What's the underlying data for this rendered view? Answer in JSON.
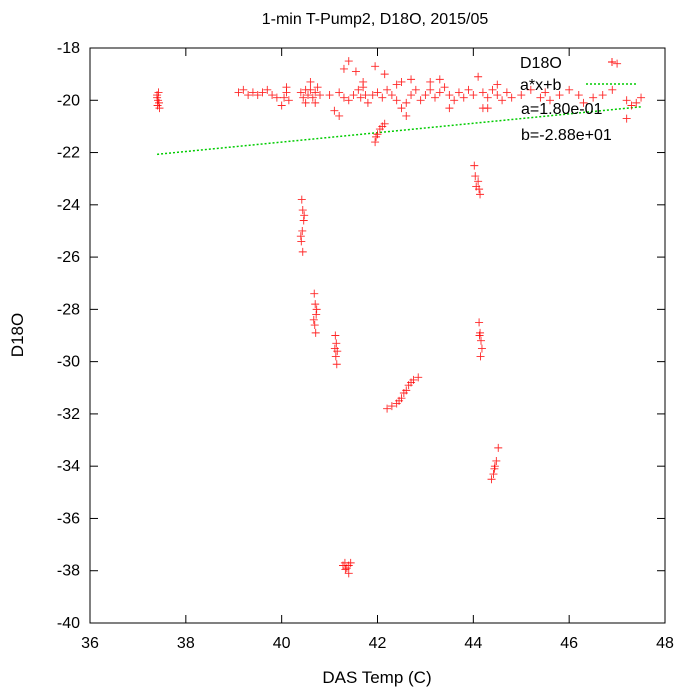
{
  "chart_data": {
    "type": "scatter",
    "title": "1-min T-Pump2, D18O, 2015/05",
    "xlabel": "DAS Temp (C)",
    "ylabel": "D18O",
    "xlim": [
      36,
      48
    ],
    "ylim": [
      -40,
      -18
    ],
    "xticks": [
      36,
      38,
      40,
      42,
      44,
      46,
      48
    ],
    "yticks": [
      -40,
      -38,
      -36,
      -34,
      -32,
      -30,
      -28,
      -26,
      -24,
      -22,
      -20,
      -18
    ],
    "grid": false,
    "legend_position": "top-right",
    "series": [
      {
        "name": "D18O",
        "style": "plus-markers",
        "color": "#ff0000",
        "points": [
          [
            37.4,
            -19.8
          ],
          [
            37.42,
            -20.0
          ],
          [
            37.44,
            -20.1
          ],
          [
            37.4,
            -19.9
          ],
          [
            37.45,
            -20.3
          ],
          [
            37.43,
            -19.7
          ],
          [
            37.41,
            -20.2
          ],
          [
            39.1,
            -19.7
          ],
          [
            39.2,
            -19.6
          ],
          [
            39.3,
            -19.8
          ],
          [
            39.4,
            -19.7
          ],
          [
            39.5,
            -19.8
          ],
          [
            39.6,
            -19.7
          ],
          [
            39.7,
            -19.6
          ],
          [
            39.8,
            -19.8
          ],
          [
            39.9,
            -19.9
          ],
          [
            40.0,
            -20.2
          ],
          [
            40.05,
            -19.9
          ],
          [
            40.1,
            -19.7
          ],
          [
            40.15,
            -20.0
          ],
          [
            40.1,
            -19.5
          ],
          [
            40.4,
            -19.7
          ],
          [
            40.45,
            -19.9
          ],
          [
            40.5,
            -20.1
          ],
          [
            40.55,
            -19.8
          ],
          [
            40.6,
            -19.6
          ],
          [
            40.65,
            -19.9
          ],
          [
            40.7,
            -19.7
          ],
          [
            40.75,
            -19.5
          ],
          [
            40.8,
            -19.8
          ],
          [
            40.7,
            -20.1
          ],
          [
            40.6,
            -19.3
          ],
          [
            40.5,
            -19.6
          ],
          [
            41.2,
            -19.7
          ],
          [
            41.3,
            -19.9
          ],
          [
            41.4,
            -20.0
          ],
          [
            41.5,
            -19.8
          ],
          [
            41.6,
            -19.6
          ],
          [
            41.65,
            -19.9
          ],
          [
            41.7,
            -19.5
          ],
          [
            41.75,
            -19.8
          ],
          [
            41.8,
            -20.1
          ],
          [
            41.7,
            -19.3
          ],
          [
            41.55,
            -18.9
          ],
          [
            41.9,
            -19.8
          ],
          [
            41.3,
            -18.8
          ],
          [
            41.4,
            -18.5
          ],
          [
            41.95,
            -18.7
          ],
          [
            42.15,
            -19.0
          ],
          [
            41.0,
            -19.8
          ],
          [
            41.1,
            -20.4
          ],
          [
            41.2,
            -20.6
          ],
          [
            42.0,
            -19.7
          ],
          [
            42.1,
            -19.9
          ],
          [
            42.2,
            -19.6
          ],
          [
            42.3,
            -19.8
          ],
          [
            42.4,
            -20.0
          ],
          [
            42.5,
            -20.3
          ],
          [
            42.6,
            -20.1
          ],
          [
            42.7,
            -19.8
          ],
          [
            42.8,
            -19.6
          ],
          [
            42.9,
            -20.0
          ],
          [
            42.6,
            -20.6
          ],
          [
            42.4,
            -19.4
          ],
          [
            42.5,
            -19.3
          ],
          [
            42.7,
            -19.2
          ],
          [
            43.0,
            -19.8
          ],
          [
            43.1,
            -19.6
          ],
          [
            43.2,
            -19.9
          ],
          [
            43.3,
            -19.7
          ],
          [
            43.4,
            -19.5
          ],
          [
            43.5,
            -19.8
          ],
          [
            43.6,
            -20.0
          ],
          [
            43.7,
            -19.7
          ],
          [
            43.8,
            -19.9
          ],
          [
            43.9,
            -19.6
          ],
          [
            43.1,
            -19.3
          ],
          [
            43.3,
            -19.2
          ],
          [
            43.5,
            -20.3
          ],
          [
            44.0,
            -19.8
          ],
          [
            44.1,
            -19.1
          ],
          [
            44.2,
            -19.7
          ],
          [
            44.3,
            -19.9
          ],
          [
            44.4,
            -19.6
          ],
          [
            44.5,
            -19.8
          ],
          [
            44.6,
            -20.0
          ],
          [
            44.7,
            -19.7
          ],
          [
            44.8,
            -19.9
          ],
          [
            44.3,
            -20.3
          ],
          [
            44.5,
            -19.4
          ],
          [
            44.2,
            -20.3
          ],
          [
            45.0,
            -19.8
          ],
          [
            45.2,
            -19.6
          ],
          [
            45.4,
            -19.9
          ],
          [
            45.5,
            -19.7
          ],
          [
            45.6,
            -20.0
          ],
          [
            45.8,
            -19.8
          ],
          [
            46.0,
            -19.6
          ],
          [
            46.2,
            -19.8
          ],
          [
            46.3,
            -20.1
          ],
          [
            46.5,
            -19.9
          ],
          [
            46.7,
            -19.8
          ],
          [
            46.9,
            -19.6
          ],
          [
            47.0,
            -18.6
          ],
          [
            47.2,
            -20.0
          ],
          [
            47.3,
            -20.2
          ],
          [
            47.4,
            -20.1
          ],
          [
            47.5,
            -19.9
          ],
          [
            47.2,
            -20.7
          ],
          [
            41.95,
            -21.6
          ],
          [
            42.0,
            -21.3
          ],
          [
            42.05,
            -21.1
          ],
          [
            42.1,
            -21.0
          ],
          [
            42.15,
            -20.9
          ],
          [
            41.97,
            -21.4
          ],
          [
            40.42,
            -23.8
          ],
          [
            40.44,
            -24.2
          ],
          [
            40.46,
            -24.6
          ],
          [
            40.43,
            -25.0
          ],
          [
            40.41,
            -25.4
          ],
          [
            40.44,
            -25.8
          ],
          [
            40.47,
            -24.4
          ],
          [
            40.4,
            -25.2
          ],
          [
            40.68,
            -27.4
          ],
          [
            40.7,
            -27.8
          ],
          [
            40.72,
            -28.2
          ],
          [
            40.69,
            -28.6
          ],
          [
            40.71,
            -28.9
          ],
          [
            40.73,
            -28.0
          ],
          [
            40.67,
            -28.4
          ],
          [
            41.12,
            -29.0
          ],
          [
            41.14,
            -29.3
          ],
          [
            41.16,
            -29.6
          ],
          [
            41.13,
            -29.8
          ],
          [
            41.15,
            -30.1
          ],
          [
            41.11,
            -29.5
          ],
          [
            42.2,
            -31.8
          ],
          [
            42.3,
            -31.7
          ],
          [
            42.4,
            -31.6
          ],
          [
            42.5,
            -31.4
          ],
          [
            42.55,
            -31.2
          ],
          [
            42.6,
            -31.1
          ],
          [
            42.65,
            -30.9
          ],
          [
            42.7,
            -30.8
          ],
          [
            42.75,
            -30.7
          ],
          [
            42.85,
            -30.6
          ],
          [
            42.45,
            -31.5
          ],
          [
            41.28,
            -37.8
          ],
          [
            41.32,
            -37.7
          ],
          [
            41.36,
            -37.9
          ],
          [
            41.4,
            -37.8
          ],
          [
            41.44,
            -37.7
          ],
          [
            41.4,
            -38.1
          ],
          [
            41.33,
            -37.95
          ],
          [
            44.02,
            -22.5
          ],
          [
            44.04,
            -22.9
          ],
          [
            44.06,
            -23.3
          ],
          [
            44.12,
            -23.4
          ],
          [
            44.14,
            -23.6
          ],
          [
            44.1,
            -23.1
          ],
          [
            44.12,
            -28.5
          ],
          [
            44.14,
            -28.9
          ],
          [
            44.16,
            -29.2
          ],
          [
            44.18,
            -29.5
          ],
          [
            44.15,
            -29.8
          ],
          [
            44.13,
            -29.0
          ],
          [
            44.38,
            -34.5
          ],
          [
            44.42,
            -34.3
          ],
          [
            44.45,
            -34.0
          ],
          [
            44.48,
            -33.8
          ],
          [
            44.52,
            -33.3
          ],
          [
            44.44,
            -34.1
          ]
        ]
      },
      {
        "name": "a*x+b",
        "style": "dotted-line",
        "color": "#00cc00",
        "a": 0.18,
        "b": -28.8,
        "x_range": [
          37.4,
          47.5
        ]
      }
    ],
    "annotations": [
      "a=1.80e-01",
      "b=-2.88e+01"
    ]
  }
}
